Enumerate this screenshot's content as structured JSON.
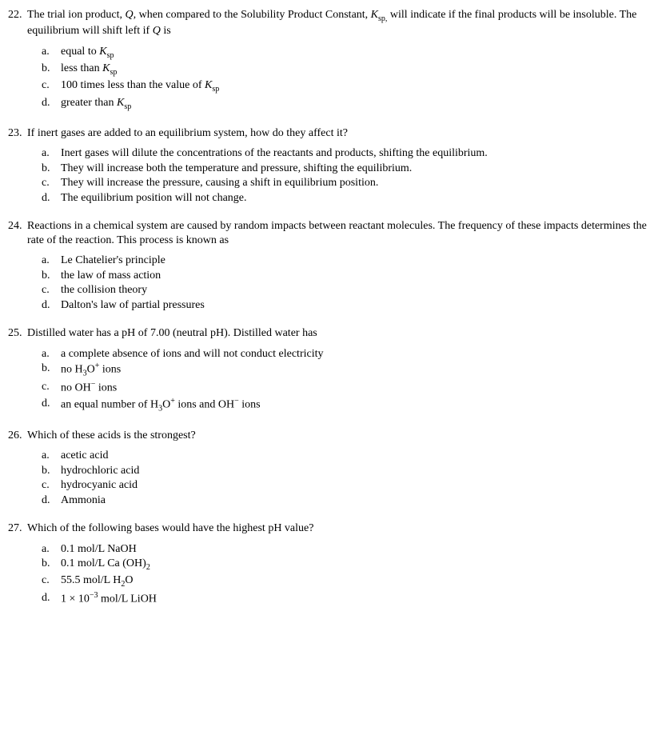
{
  "questions": [
    {
      "number": "22.",
      "stem_html": "The trial ion product, <span class='italic'>Q,</span> when compared to the Solubility Product Constant, <span class='italic'>K</span><span class='sub'>sp,</span> will indicate if the final products will be insoluble. The equilibrium will shift left if <span class='italic'>Q</span> is",
      "options": [
        {
          "l": "a.",
          "t": "equal to <span class='italic'>K</span><span class='sub'>sp</span>"
        },
        {
          "l": "b.",
          "t": "less than <span class='italic'>K</span><span class='sub'>sp</span>"
        },
        {
          "l": "c.",
          "t": "100 times less than the value of <span class='italic'>K</span><span class='sub'>sp</span>"
        },
        {
          "l": "d.",
          "t": "greater than <span class='italic'>K</span><span class='sub'>sp</span>"
        }
      ]
    },
    {
      "number": "23.",
      "stem_html": "If inert gases are added to an equilibrium system, how do they affect it?",
      "options": [
        {
          "l": "a.",
          "t": "Inert gases will dilute the concentrations of the reactants and products, shifting the equilibrium."
        },
        {
          "l": "b.",
          "t": "They will increase both the temperature and pressure, shifting the equilibrium."
        },
        {
          "l": "c.",
          "t": "They will increase the pressure, causing a shift in equilibrium position."
        },
        {
          "l": "d.",
          "t": "The equilibrium position will not change."
        }
      ]
    },
    {
      "number": "24.",
      "stem_html": "Reactions in a chemical system are caused by random impacts between reactant molecules. The frequency of these impacts determines the rate of the reaction. This process is known as",
      "options": [
        {
          "l": "a.",
          "t": "Le Chatelier's principle"
        },
        {
          "l": "b.",
          "t": "the law of mass action"
        },
        {
          "l": "c.",
          "t": "the collision theory"
        },
        {
          "l": "d.",
          "t": "Dalton's law of partial pressures"
        }
      ]
    },
    {
      "number": "25.",
      "stem_html": "Distilled water has a pH of 7.00 (neutral pH). Distilled water has",
      "options": [
        {
          "l": "a.",
          "t": "a complete absence of ions and will not conduct electricity"
        },
        {
          "l": "b.",
          "t": "no H<span class='sub'>3</span>O<span class='sup'>+</span> ions"
        },
        {
          "l": "c.",
          "t": "no OH<span class='sup'>&#8722;</span> ions"
        },
        {
          "l": "d.",
          "t": "an equal number of H<span class='sub'>3</span>O<span class='sup'>+</span> ions and OH<span class='sup'>&#8722;</span> ions"
        }
      ]
    },
    {
      "number": "26.",
      "stem_html": "Which of these acids is the strongest?",
      "options": [
        {
          "l": "a.",
          "t": "acetic acid"
        },
        {
          "l": "b.",
          "t": "hydrochloric acid"
        },
        {
          "l": "c.",
          "t": "hydrocyanic acid"
        },
        {
          "l": "d.",
          "t": "Ammonia"
        }
      ]
    },
    {
      "number": "27.",
      "stem_html": "Which of the following bases would have the highest pH value?",
      "options": [
        {
          "l": "a.",
          "t": "0.1 mol/L NaOH"
        },
        {
          "l": "b.",
          "t": "0.1 mol/L Ca (OH)<span class='sub'>2</span>"
        },
        {
          "l": "c.",
          "t": "55.5 mol/L H<span class='sub'>2</span>O"
        },
        {
          "l": "d.",
          "t": "1 &times; 10<span class='sup'>&#8722;3</span> mol/L LiOH"
        }
      ]
    }
  ]
}
